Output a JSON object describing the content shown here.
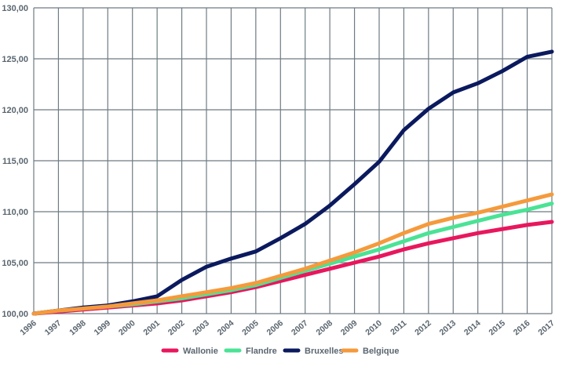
{
  "chart_data": {
    "type": "line",
    "title": "",
    "xlabel": "",
    "ylabel": "",
    "ylim": [
      100,
      130
    ],
    "yticks": [
      "100,00",
      "105,00",
      "110,00",
      "115,00",
      "120,00",
      "125,00",
      "130,00"
    ],
    "ytick_values": [
      100,
      105,
      110,
      115,
      120,
      125,
      130
    ],
    "x": [
      "1996",
      "1997",
      "1998",
      "1999",
      "2000",
      "2001",
      "2002",
      "2003",
      "2004",
      "2005",
      "2006",
      "2007",
      "2008",
      "2009",
      "2010",
      "2011",
      "2012",
      "2013",
      "2014",
      "2015",
      "2016",
      "2017"
    ],
    "grid": true,
    "legend_position": "bottom",
    "series": [
      {
        "name": "Wallonie",
        "color": "#e8175d",
        "values": [
          100.0,
          100.2,
          100.4,
          100.6,
          100.8,
          101.0,
          101.3,
          101.7,
          102.1,
          102.6,
          103.2,
          103.8,
          104.4,
          105.0,
          105.6,
          106.3,
          106.9,
          107.4,
          107.9,
          108.3,
          108.7,
          109.0
        ]
      },
      {
        "name": "Flandre",
        "color": "#4ae395",
        "values": [
          100.0,
          100.3,
          100.5,
          100.7,
          100.9,
          101.2,
          101.5,
          101.9,
          102.3,
          102.8,
          103.5,
          104.2,
          104.9,
          105.6,
          106.3,
          107.1,
          107.9,
          108.5,
          109.1,
          109.7,
          110.2,
          110.8
        ]
      },
      {
        "name": "Bruxelles",
        "color": "#0b1a5e",
        "values": [
          100.0,
          100.3,
          100.6,
          100.8,
          101.2,
          101.7,
          103.3,
          104.6,
          105.4,
          106.1,
          107.4,
          108.8,
          110.6,
          112.7,
          114.9,
          118.0,
          120.1,
          121.7,
          122.6,
          123.8,
          125.2,
          125.7
        ]
      },
      {
        "name": "Belgique",
        "color": "#f59a3c",
        "values": [
          100.0,
          100.3,
          100.5,
          100.7,
          101.0,
          101.3,
          101.7,
          102.1,
          102.5,
          103.0,
          103.7,
          104.4,
          105.2,
          106.0,
          106.9,
          107.9,
          108.8,
          109.4,
          109.9,
          110.5,
          111.1,
          111.7
        ]
      }
    ]
  }
}
